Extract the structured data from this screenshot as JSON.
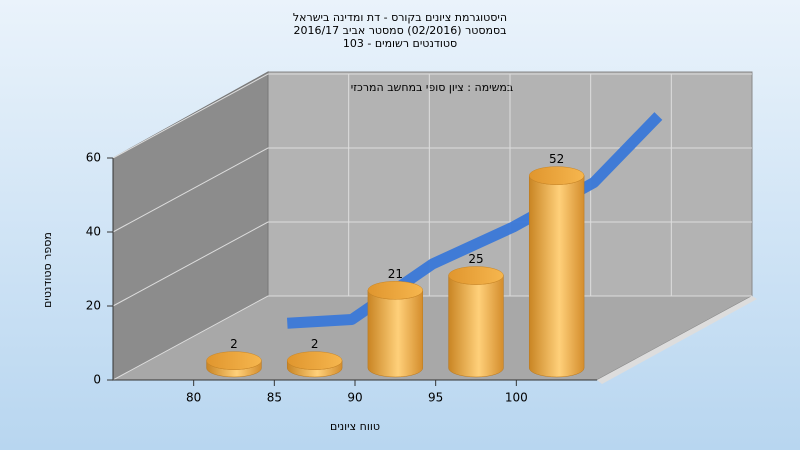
{
  "chart_data": {
    "type": "histogram",
    "title": [
      "היסטוגרמת ציונים בקורס - דת ומדינה בישראל",
      "בסמסטר  (02/2016)  סמסטר אביב 2016/17",
      "סטודנטים רשומים - 103"
    ],
    "annotation": "במשימה : ציון סופי במחשב המרכזי",
    "ylabel": "מספר סטודנטים",
    "xlabel": "טווח ציונים",
    "bins": [
      80,
      85,
      90,
      95,
      100,
      105
    ],
    "values": [
      2,
      2,
      21,
      25,
      52
    ],
    "color": "#f0a840",
    "line": {
      "color": "#3a78d8",
      "x": [
        81,
        85,
        90,
        95,
        100,
        104
      ],
      "values": [
        4,
        5,
        20,
        30,
        42,
        60
      ]
    },
    "xlim": [
      75,
      105
    ],
    "xticks": [
      80,
      85,
      90,
      95,
      100
    ],
    "ylim": [
      0,
      60
    ],
    "yticks": [
      0,
      20,
      40,
      60
    ],
    "grid": true
  }
}
